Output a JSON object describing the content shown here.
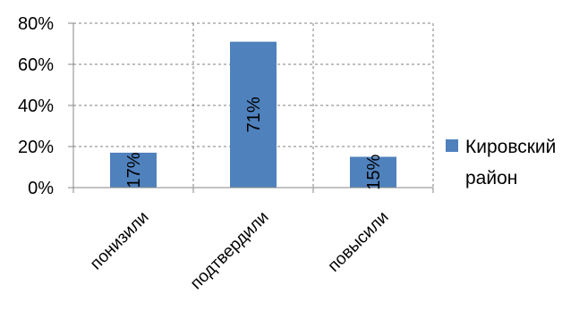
{
  "chart_data": {
    "type": "bar",
    "categories": [
      "понизили",
      "подтвердили",
      "повысили"
    ],
    "series": [
      {
        "name": "Кировский район",
        "values": [
          17,
          71,
          15
        ],
        "color": "#4F81BD"
      }
    ],
    "data_labels": [
      "17%",
      "71%",
      "15%"
    ],
    "yticks": [
      "0%",
      "20%",
      "40%",
      "60%",
      "80%"
    ],
    "ylim": [
      0,
      80
    ],
    "grid": true,
    "grid_color": "#7f7f7f",
    "legend": {
      "position": "right",
      "lines": [
        "Кировский",
        "район"
      ]
    }
  }
}
